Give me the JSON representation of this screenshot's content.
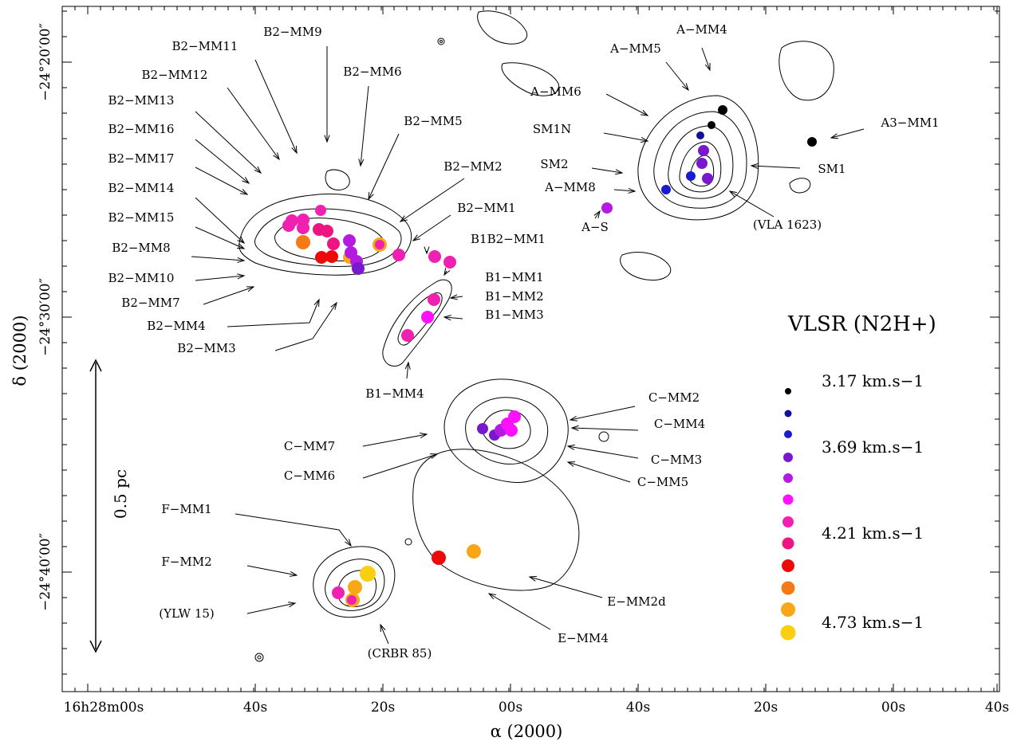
{
  "chart_data": {
    "type": "scatter",
    "x_axis": {
      "label": "α (2000)",
      "ticks": [
        "16h28m00s",
        "40s",
        "20s",
        "00s",
        "40s",
        "20s",
        "00s",
        "40s"
      ]
    },
    "y_axis": {
      "label": "δ (2000)",
      "ticks": [
        "−24°20′00″",
        "−24°30′00″",
        "−24°40′00″"
      ]
    },
    "scale_bar": "0.5 pc",
    "legend": {
      "title": "VLSR (N2H+)",
      "entries": [
        {
          "label": "3.17 km.s−1",
          "color": "#000000"
        },
        {
          "label": "",
          "color": "#10109a"
        },
        {
          "label": "",
          "color": "#1a1ad0"
        },
        {
          "label": "3.69 km.s−1",
          "color": "#7a18cf"
        },
        {
          "label": "",
          "color": "#b31ce0"
        },
        {
          "label": "",
          "color": "#ff10ff"
        },
        {
          "label": "",
          "color": "#f020b0"
        },
        {
          "label": "4.21 km.s−1",
          "color": "#ee1582"
        },
        {
          "label": "",
          "color": "#ee0a0a"
        },
        {
          "label": "",
          "color": "#f57a15"
        },
        {
          "label": "",
          "color": "#f7a814"
        },
        {
          "label": "4.73 km.s−1",
          "color": "#f8d010"
        }
      ]
    },
    "labels": [
      "B2−MM9",
      "B2−MM11",
      "B2−MM6",
      "B2−MM12",
      "B2−MM13",
      "B2−MM5",
      "B2−MM16",
      "B2−MM17",
      "B2−MM2",
      "B2−MM14",
      "B2−MM1",
      "B2−MM15",
      "B1B2−MM1",
      "B2−MM8",
      "B2−MM10",
      "B1−MM1",
      "B2−MM7",
      "B1−MM2",
      "B1−MM3",
      "B2−MM4",
      "B2−MM3",
      "B1−MM4",
      "A−MM4",
      "A−MM5",
      "A−MM6",
      "SM1N",
      "A3−MM1",
      "SM2",
      "SM1",
      "A−MM8",
      "(VLA 1623)",
      "A−S",
      "C−MM2",
      "C−MM4",
      "C−MM7",
      "C−MM3",
      "C−MM6",
      "C−MM5",
      "F−MM1",
      "F−MM2",
      "(YLW 15)",
      "E−MM2d",
      "E−MM4",
      "(CRBR 85)"
    ],
    "sources": [
      {
        "color_index": 0,
        "x_sec": 26,
        "y_arcmin": 21.4
      },
      {
        "color_index": 0,
        "x_sec": 25,
        "y_arcmin": 21.9
      },
      {
        "color_index": 0,
        "x_sec": 10,
        "y_arcmin": 22.9
      },
      {
        "color_index": 1,
        "x_sec": 28,
        "y_arcmin": 22.3
      },
      {
        "color_index": 2,
        "x_sec": 31,
        "y_arcmin": 24.5
      },
      {
        "color_index": 2,
        "x_sec": 36,
        "y_arcmin": 25.0
      },
      {
        "color_index": 3,
        "x_sec": 27,
        "y_arcmin": 23.5
      },
      {
        "color_index": 3,
        "x_sec": 27,
        "y_arcmin": 24.0
      },
      {
        "color_index": 3,
        "x_sec": 26,
        "y_arcmin": 24.6
      },
      {
        "color_index": 3,
        "x_sec": 39,
        "y_arcmin": 25.7
      },
      {
        "color_index": 4,
        "x_sec": 22,
        "y_arcmin": 27.0
      },
      {
        "color_index": 4,
        "x_sec": 23,
        "y_arcmin": 27.5
      },
      {
        "color_index": 4,
        "x_sec": 22,
        "y_arcmin": 28.0
      },
      {
        "color_index": 4,
        "x_sec": 21,
        "y_arcmin": 28.3
      },
      {
        "color_index": 6,
        "x_sec": 37,
        "y_arcmin": 26.2
      },
      {
        "color_index": 6,
        "x_sec": 35,
        "y_arcmin": 26.5
      },
      {
        "color_index": 6,
        "x_sec": 29,
        "y_arcmin": 26.9
      },
      {
        "color_index": 6,
        "x_sec": 24,
        "y_arcmin": 27.0
      },
      {
        "color_index": 5,
        "x_sec": 15,
        "y_arcmin": 29.3
      },
      {
        "color_index": 5,
        "x_sec": 16,
        "y_arcmin": 30.0
      }
    ]
  }
}
